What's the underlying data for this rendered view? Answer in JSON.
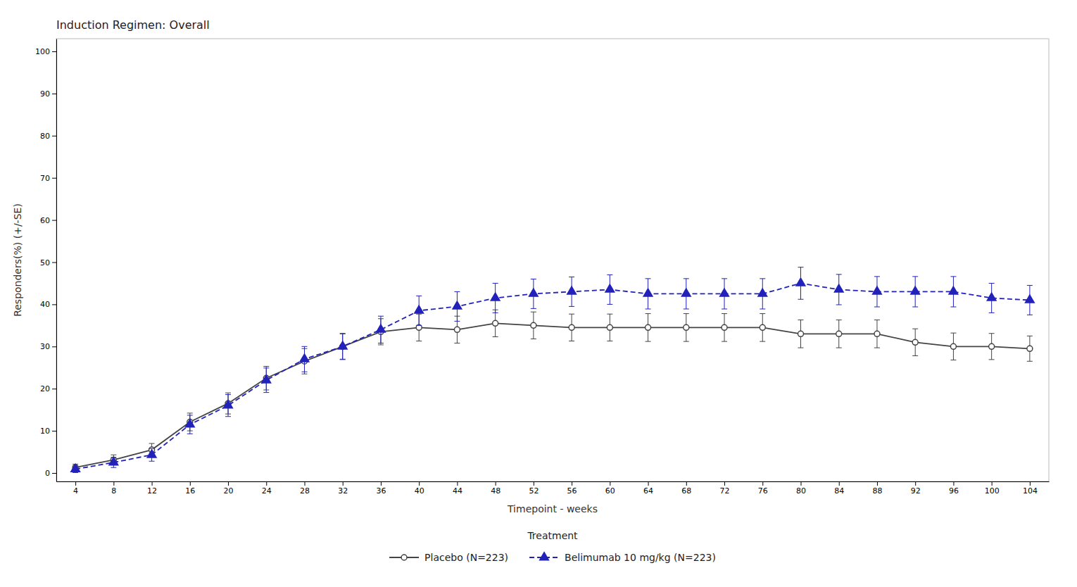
{
  "chart_data": {
    "type": "line",
    "title": "Induction Regimen: Overall",
    "xlabel": "Timepoint - weeks",
    "ylabel": "Responders(%) (+/-SE)",
    "x": [
      4,
      8,
      12,
      16,
      20,
      24,
      28,
      32,
      36,
      40,
      44,
      48,
      52,
      56,
      60,
      64,
      68,
      72,
      76,
      80,
      84,
      88,
      92,
      96,
      100,
      104
    ],
    "xlim": [
      2,
      106
    ],
    "xticks": [
      4,
      8,
      12,
      16,
      20,
      24,
      28,
      32,
      36,
      40,
      44,
      48,
      52,
      56,
      60,
      64,
      68,
      72,
      76,
      80,
      84,
      88,
      92,
      96,
      100,
      104
    ],
    "ylim": [
      -2,
      103
    ],
    "yticks": [
      0,
      10,
      20,
      30,
      40,
      50,
      60,
      70,
      80,
      90,
      100
    ],
    "grid": false,
    "legend": "bottom",
    "legend_title": "Treatment",
    "series": [
      {
        "name": "Placebo (N=223)",
        "color": "#444444",
        "marker": "circle",
        "line_style": "solid",
        "values": [
          1.3,
          3.1,
          5.5,
          12.1,
          16.5,
          22.5,
          26.5,
          30.0,
          33.5,
          34.5,
          34.0,
          35.5,
          35.0,
          34.5,
          34.5,
          34.5,
          34.5,
          34.5,
          34.5,
          33.0,
          33.0,
          33.0,
          31.0,
          30.0,
          30.0,
          29.5
        ],
        "errors": [
          0.8,
          1.2,
          1.5,
          2.1,
          2.5,
          2.8,
          3.0,
          3.0,
          3.1,
          3.2,
          3.2,
          3.2,
          3.2,
          3.2,
          3.2,
          3.3,
          3.3,
          3.3,
          3.3,
          3.3,
          3.3,
          3.3,
          3.2,
          3.2,
          3.1,
          3.0
        ]
      },
      {
        "name": "Belimumab 10 mg/kg (N=223)",
        "color": "#2222bb",
        "marker": "triangle",
        "line_style": "dashed",
        "values": [
          0.9,
          2.5,
          4.3,
          11.5,
          16.0,
          22.0,
          27.0,
          30.0,
          34.0,
          38.5,
          39.5,
          41.5,
          42.5,
          43.0,
          43.5,
          42.5,
          42.5,
          42.5,
          42.5,
          45.0,
          43.5,
          43.0,
          43.0,
          43.0,
          41.5,
          41.0
        ],
        "errors": [
          0.8,
          1.2,
          1.5,
          2.2,
          2.6,
          2.9,
          3.0,
          3.1,
          3.2,
          3.5,
          3.5,
          3.5,
          3.5,
          3.5,
          3.5,
          3.6,
          3.6,
          3.6,
          3.6,
          3.8,
          3.6,
          3.6,
          3.6,
          3.6,
          3.5,
          3.5
        ]
      }
    ]
  }
}
